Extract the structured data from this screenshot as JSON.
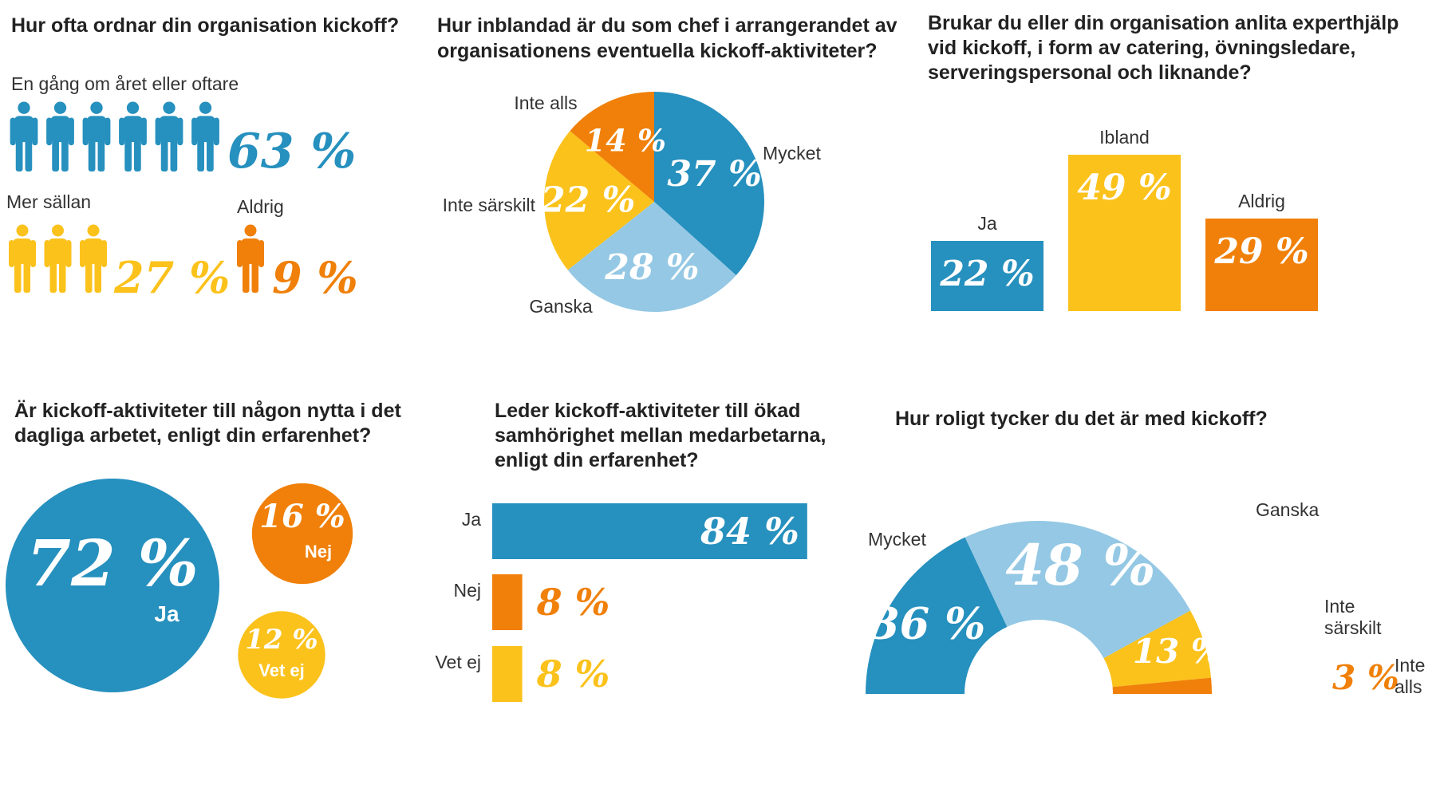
{
  "colors": {
    "blue": "#2690be",
    "light_blue": "#94c8e4",
    "yellow": "#fbc21c",
    "orange": "#f08009",
    "title": "#222222",
    "label": "#333333"
  },
  "chart_data": [
    {
      "type": "pictogram",
      "title": "Hur ofta ordnar din organisation kickoff?",
      "icon": "person-icon",
      "series": [
        {
          "label": "En gång om året eller oftare",
          "value": 63,
          "value_label": "63 %",
          "icons": 6,
          "color": "#2690be"
        },
        {
          "label": "Mer sällan",
          "value": 27,
          "value_label": "27 %",
          "icons": 3,
          "color": "#fbc21c"
        },
        {
          "label": "Aldrig",
          "value": 9,
          "value_label": "9 %",
          "icons": 1,
          "color": "#f08009"
        }
      ]
    },
    {
      "type": "pie",
      "title": "Hur inblandad är du som chef i arrangerandet av organisationens eventuella kickoff-aktiviteter?",
      "slices": [
        {
          "label": "Mycket",
          "value": 37,
          "value_label": "37 %",
          "color": "#2690be"
        },
        {
          "label": "Ganska",
          "value": 28,
          "value_label": "28 %",
          "color": "#94c8e4"
        },
        {
          "label": "Inte särskilt",
          "value": 22,
          "value_label": "22 %",
          "color": "#fbc21c"
        },
        {
          "label": "Inte alls",
          "value": 14,
          "value_label": "14 %",
          "color": "#f08009"
        }
      ]
    },
    {
      "type": "bar",
      "title": "Brukar du eller din organisation anlita experthjälp vid kickoff, i form av catering, övningsledare, serveringspersonal och liknande?",
      "categories": [
        "Ja",
        "Ibland",
        "Aldrig"
      ],
      "values": [
        22,
        49,
        29
      ],
      "value_labels": [
        "22 %",
        "49 %",
        "29 %"
      ],
      "colors": [
        "#2690be",
        "#fbc21c",
        "#f08009"
      ]
    },
    {
      "type": "bubble",
      "title": "Är kickoff-aktiviteter till någon nytta i det dagliga arbetet, enligt din erfarenhet?",
      "items": [
        {
          "label": "Ja",
          "value": 72,
          "value_label": "72 %",
          "color": "#2690be"
        },
        {
          "label": "Nej",
          "value": 16,
          "value_label": "16 %",
          "color": "#f08009"
        },
        {
          "label": "Vet ej",
          "value": 12,
          "value_label": "12 %",
          "color": "#fbc21c"
        }
      ]
    },
    {
      "type": "bar",
      "orientation": "horizontal",
      "title": "Leder kickoff-aktiviteter till ökad samhörighet mellan medarbetarna, enligt din erfarenhet?",
      "categories": [
        "Ja",
        "Nej",
        "Vet ej"
      ],
      "values": [
        84,
        8,
        8
      ],
      "value_labels": [
        "84 %",
        "8 %",
        "8 %"
      ],
      "colors": [
        "#2690be",
        "#f08009",
        "#fbc21c"
      ]
    },
    {
      "type": "pie",
      "variant": "half-donut",
      "title": "Hur roligt tycker du det är med kickoff?",
      "slices": [
        {
          "label": "Mycket",
          "value": 36,
          "value_label": "36 %",
          "color": "#2690be"
        },
        {
          "label": "Ganska",
          "value": 48,
          "value_label": "48 %",
          "color": "#94c8e4"
        },
        {
          "label": "Inte\nsärskilt",
          "value": 13,
          "value_label": "13 %",
          "color": "#fbc21c"
        },
        {
          "label": "Inte\nalls",
          "value": 3,
          "value_label": "3 %",
          "color": "#f08009"
        }
      ]
    }
  ]
}
